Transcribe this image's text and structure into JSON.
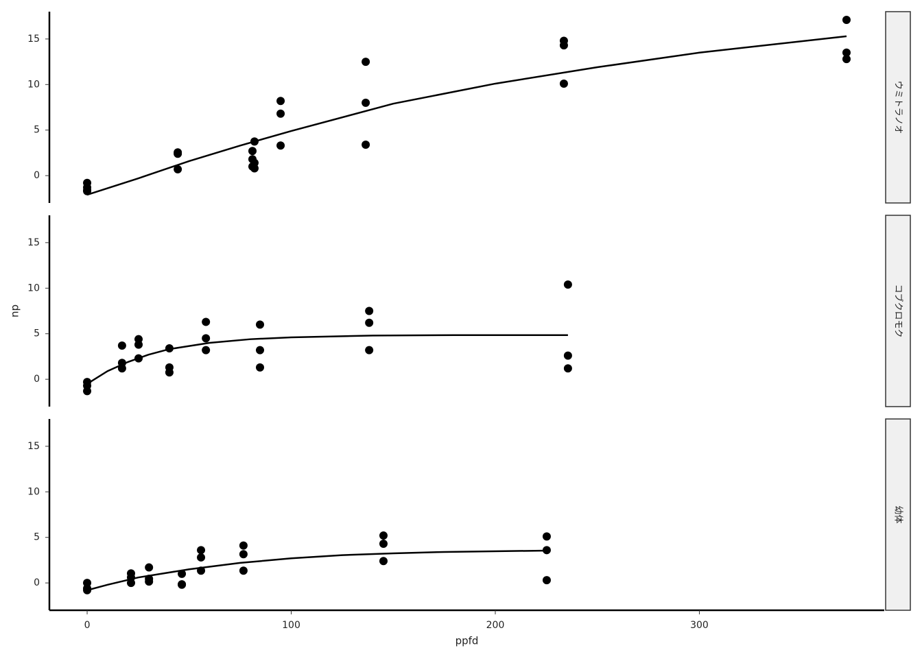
{
  "chart_data": [
    {
      "type": "scatter",
      "strip": "ウミトラノオ",
      "x": [
        0,
        0,
        0,
        0,
        44.4,
        44.4,
        44.4,
        81,
        81,
        81,
        82,
        82,
        82,
        94.8,
        94.8,
        94.8,
        136.5,
        136.5,
        136.5,
        233.6,
        233.6,
        233.6,
        372.1,
        372.1,
        372.1
      ],
      "values": [
        -0.8,
        -1.3,
        -1.6,
        -1.7,
        2.55,
        2.4,
        0.7,
        2.7,
        1.8,
        1.0,
        3.75,
        1.4,
        0.8,
        8.2,
        6.8,
        3.3,
        12.5,
        8.0,
        3.4,
        14.8,
        14.3,
        10.1,
        17.1,
        13.5,
        12.8
      ],
      "fit_x": [
        0,
        25,
        50,
        75,
        100,
        150,
        200,
        250,
        300,
        372.1
      ],
      "fit_values": [
        -2.1,
        -0.3,
        1.6,
        3.3,
        4.9,
        7.9,
        10.1,
        11.9,
        13.5,
        15.3
      ],
      "color": "#000000",
      "xlim": [
        -18.5,
        390.6
      ],
      "ylim": [
        -3.0,
        18.0
      ],
      "yticks": [
        0,
        5,
        10,
        15
      ]
    },
    {
      "type": "scatter",
      "strip": "コブクロモク",
      "ylabel": "np",
      "x": [
        0,
        0,
        0,
        17.1,
        17.1,
        17.1,
        25.2,
        25.2,
        25.2,
        40.3,
        40.3,
        40.3,
        58.2,
        58.2,
        58.2,
        84.7,
        84.7,
        84.7,
        138.2,
        138.2,
        138.2,
        235.6,
        235.6,
        235.6
      ],
      "values": [
        -0.3,
        -0.7,
        -1.3,
        3.7,
        1.8,
        1.2,
        4.4,
        3.8,
        2.3,
        3.4,
        1.3,
        0.75,
        6.3,
        4.5,
        3.2,
        6.0,
        3.2,
        1.3,
        7.5,
        6.2,
        3.2,
        10.4,
        2.6,
        1.2
      ],
      "fit_x": [
        0,
        10,
        20,
        30,
        40,
        60,
        80,
        100,
        140,
        180,
        235.6
      ],
      "fit_values": [
        -0.5,
        0.9,
        1.9,
        2.7,
        3.3,
        4.0,
        4.4,
        4.6,
        4.8,
        4.85,
        4.85
      ],
      "color": "#000000",
      "xlim": [
        -18.5,
        390.6
      ],
      "ylim": [
        -3.0,
        18.0
      ],
      "yticks": [
        0,
        5,
        10,
        15
      ]
    },
    {
      "type": "scatter",
      "strip": "幼体",
      "xlabel": "ppfd",
      "x": [
        0,
        0,
        0,
        21.5,
        21.5,
        21.5,
        30.3,
        30.3,
        30.3,
        46.4,
        46.4,
        46.4,
        55.8,
        55.8,
        55.8,
        76.6,
        76.6,
        76.6,
        145.2,
        145.2,
        145.2,
        225.2,
        225.2,
        225.2
      ],
      "values": [
        0,
        -0.6,
        -0.8,
        1.05,
        0.6,
        0.0,
        1.7,
        0.45,
        0.15,
        1.0,
        -0.15,
        -0.2,
        3.6,
        2.8,
        1.35,
        4.1,
        3.15,
        1.35,
        5.2,
        4.3,
        2.4,
        5.1,
        3.6,
        0.3
      ],
      "fit_x": [
        0,
        10,
        25,
        50,
        75,
        100,
        125,
        150,
        175,
        225.2
      ],
      "fit_values": [
        -0.8,
        -0.2,
        0.6,
        1.5,
        2.2,
        2.7,
        3.05,
        3.25,
        3.4,
        3.55
      ],
      "color": "#000000",
      "xlim": [
        -18.5,
        390.6
      ],
      "ylim": [
        -3.0,
        18.0
      ],
      "yticks": [
        0,
        5,
        10,
        15
      ],
      "xticks": [
        0,
        100,
        200,
        300
      ]
    }
  ]
}
